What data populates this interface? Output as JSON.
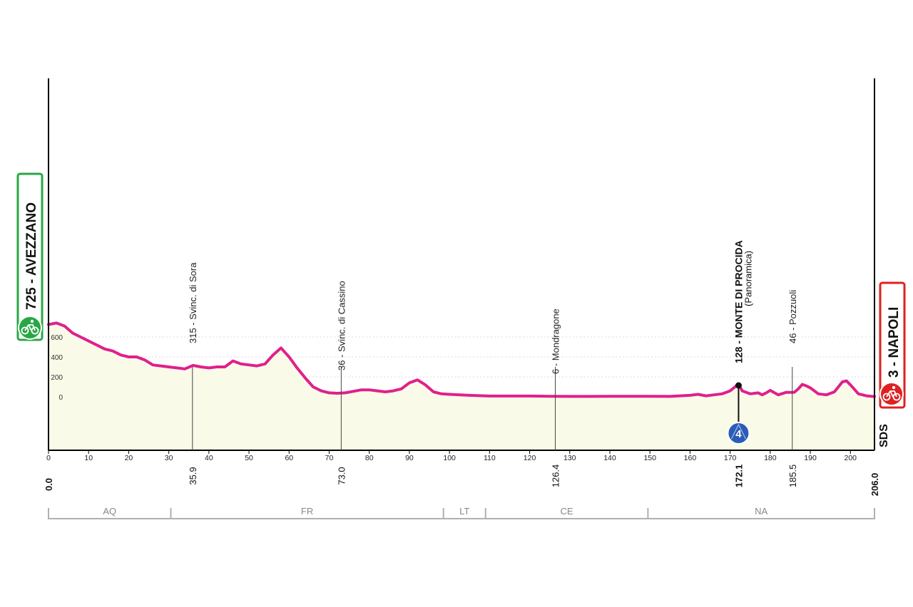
{
  "chart_data": {
    "type": "area",
    "unit_x": "km",
    "unit_y": "m",
    "xlim": [
      0,
      206
    ],
    "ylim": [
      -250,
      800
    ],
    "x_ticks": [
      0,
      10,
      20,
      30,
      40,
      50,
      60,
      70,
      80,
      90,
      100,
      110,
      120,
      130,
      140,
      150,
      160,
      170,
      180,
      190,
      200
    ],
    "x_tick_labels": [
      "0",
      "10",
      "20",
      "30",
      "40",
      "50",
      "60",
      "70",
      "80",
      "90",
      "100",
      "110",
      "120",
      "130",
      "140",
      "150",
      "160",
      "170",
      "180",
      "190",
      "200"
    ],
    "y_ticks": [
      0,
      200,
      400,
      600
    ],
    "y_tick_labels": [
      "0",
      "200",
      "400",
      "600"
    ],
    "series": [
      {
        "color": "#e0208c",
        "x": [
          0,
          2,
          4,
          6,
          8,
          10,
          12,
          14,
          16,
          18,
          20,
          22,
          24,
          26,
          28,
          30,
          32,
          34,
          36,
          38,
          40,
          42,
          44,
          46,
          48,
          50,
          52,
          54,
          56,
          58,
          60,
          62,
          64,
          66,
          68,
          70,
          72,
          74,
          76,
          78,
          80,
          82,
          84,
          86,
          88,
          90,
          92,
          94,
          96,
          98,
          100,
          105,
          110,
          115,
          120,
          125,
          130,
          135,
          140,
          145,
          150,
          155,
          160,
          162,
          164,
          166,
          168,
          170,
          172.1,
          173,
          175,
          177,
          178,
          179,
          180,
          182,
          184,
          186,
          187,
          188,
          189,
          190,
          192,
          194,
          196,
          198,
          199,
          200,
          202,
          204,
          206
        ],
        "y": [
          725,
          740,
          710,
          640,
          600,
          560,
          520,
          480,
          460,
          420,
          400,
          400,
          370,
          320,
          310,
          300,
          290,
          280,
          315,
          300,
          290,
          300,
          300,
          360,
          330,
          320,
          310,
          330,
          420,
          490,
          400,
          290,
          190,
          100,
          60,
          40,
          36,
          40,
          55,
          70,
          70,
          60,
          50,
          60,
          80,
          140,
          170,
          120,
          50,
          30,
          25,
          15,
          8,
          8,
          8,
          6,
          4,
          4,
          5,
          5,
          6,
          4,
          15,
          25,
          10,
          20,
          30,
          60,
          128,
          60,
          30,
          40,
          20,
          40,
          65,
          20,
          45,
          46,
          80,
          125,
          110,
          90,
          30,
          20,
          50,
          150,
          160,
          120,
          30,
          10,
          3
        ]
      }
    ],
    "profile_points": [
      {
        "x": 0,
        "y": 725
      },
      {
        "x": 35.9,
        "y": 315
      },
      {
        "x": 73.0,
        "y": 36
      },
      {
        "x": 126.4,
        "y": 6
      },
      {
        "x": 172.1,
        "y": 128
      },
      {
        "x": 185.5,
        "y": 46
      },
      {
        "x": 206,
        "y": 3
      }
    ]
  },
  "start": {
    "alt": "725",
    "name": "AVEZZANO",
    "text": "725 - AVEZZANO",
    "color": "#28a745"
  },
  "finish": {
    "alt": "3",
    "name": "NAPOLI",
    "text": "3 - NAPOLI",
    "color": "#e02020"
  },
  "waypoints": [
    {
      "km": 35.9,
      "km_label": "35.9",
      "label": "315 - Svinc. di Sora",
      "bold": false
    },
    {
      "km": 73.0,
      "km_label": "73.0",
      "label": "36 - Svinc. di Cassino",
      "bold": false
    },
    {
      "km": 126.4,
      "km_label": "126.4",
      "label": "6 - Mondragone",
      "bold": false
    },
    {
      "km": 172.1,
      "km_label": "172.1",
      "label": "128 - MONTE DI PROCIDA",
      "sublabel": "(Panoramica)",
      "bold": true,
      "category": "4"
    },
    {
      "km": 185.5,
      "km_label": "185.5",
      "label": "46 - Pozzuoli",
      "bold": false
    }
  ],
  "km_start_label": "0.0",
  "km_end_label": "206.0",
  "provinces": [
    {
      "code": "AQ",
      "from": 0,
      "to": 30.5
    },
    {
      "code": "FR",
      "from": 30.5,
      "to": 98.5
    },
    {
      "code": "LT",
      "from": 98.5,
      "to": 109
    },
    {
      "code": "CE",
      "from": 109,
      "to": 149.5
    },
    {
      "code": "NA",
      "from": 149.5,
      "to": 206
    }
  ],
  "logo_text": "SDS",
  "colors": {
    "profile_line": "#e0208c",
    "profile_fill": "#f9fbe8",
    "grid": "#b8b8b8",
    "axis": "#000000",
    "province_line": "#b0b0b0",
    "kom_badge": "#2a5cb8"
  }
}
